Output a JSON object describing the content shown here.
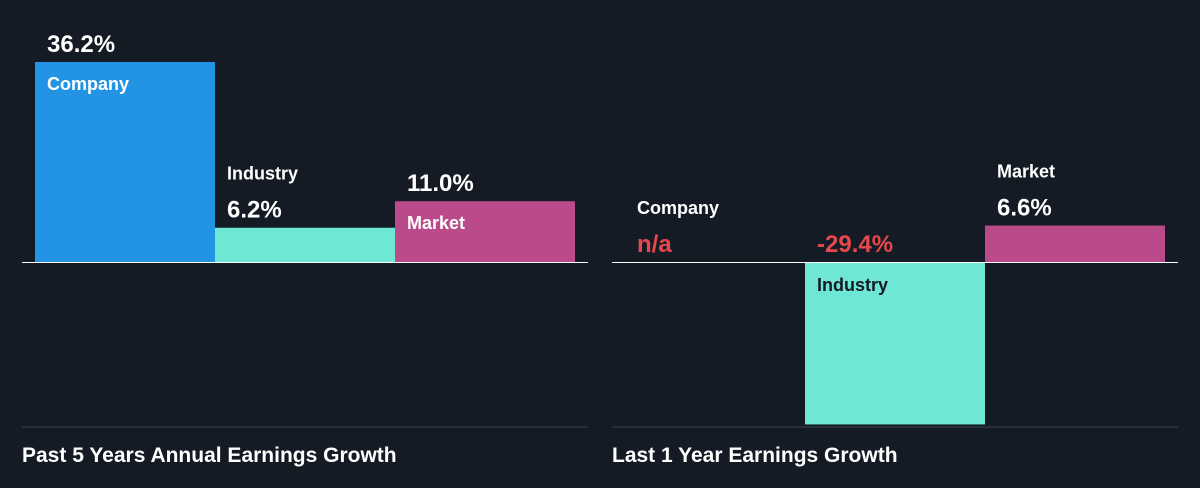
{
  "colors": {
    "background": "#151b24",
    "company": "#2394e4",
    "industry": "#6fe7d5",
    "market": "#bb4a8a",
    "negative_text": "#e5484d",
    "text": "#ffffff",
    "dark_text": "#151b24",
    "baseline": "#ffffff",
    "footer_line": "#3a4048"
  },
  "chart_data": [
    {
      "type": "bar",
      "title": "Past 5 Years Annual Earnings Growth",
      "categories": [
        "Company",
        "Industry",
        "Market"
      ],
      "values": [
        36.2,
        6.2,
        11.0
      ],
      "value_labels": [
        "36.2%",
        "6.2%",
        "11.0%"
      ],
      "unit": "%",
      "ylim": [
        -30,
        36.2
      ],
      "grid": false,
      "legend": "none"
    },
    {
      "type": "bar",
      "title": "Last 1 Year Earnings Growth",
      "categories": [
        "Company",
        "Industry",
        "Market"
      ],
      "values": [
        null,
        -29.4,
        6.6
      ],
      "value_labels": [
        "n/a",
        "-29.4%",
        "6.6%"
      ],
      "unit": "%",
      "ylim": [
        -30,
        36.2
      ],
      "grid": false,
      "legend": "none"
    }
  ]
}
